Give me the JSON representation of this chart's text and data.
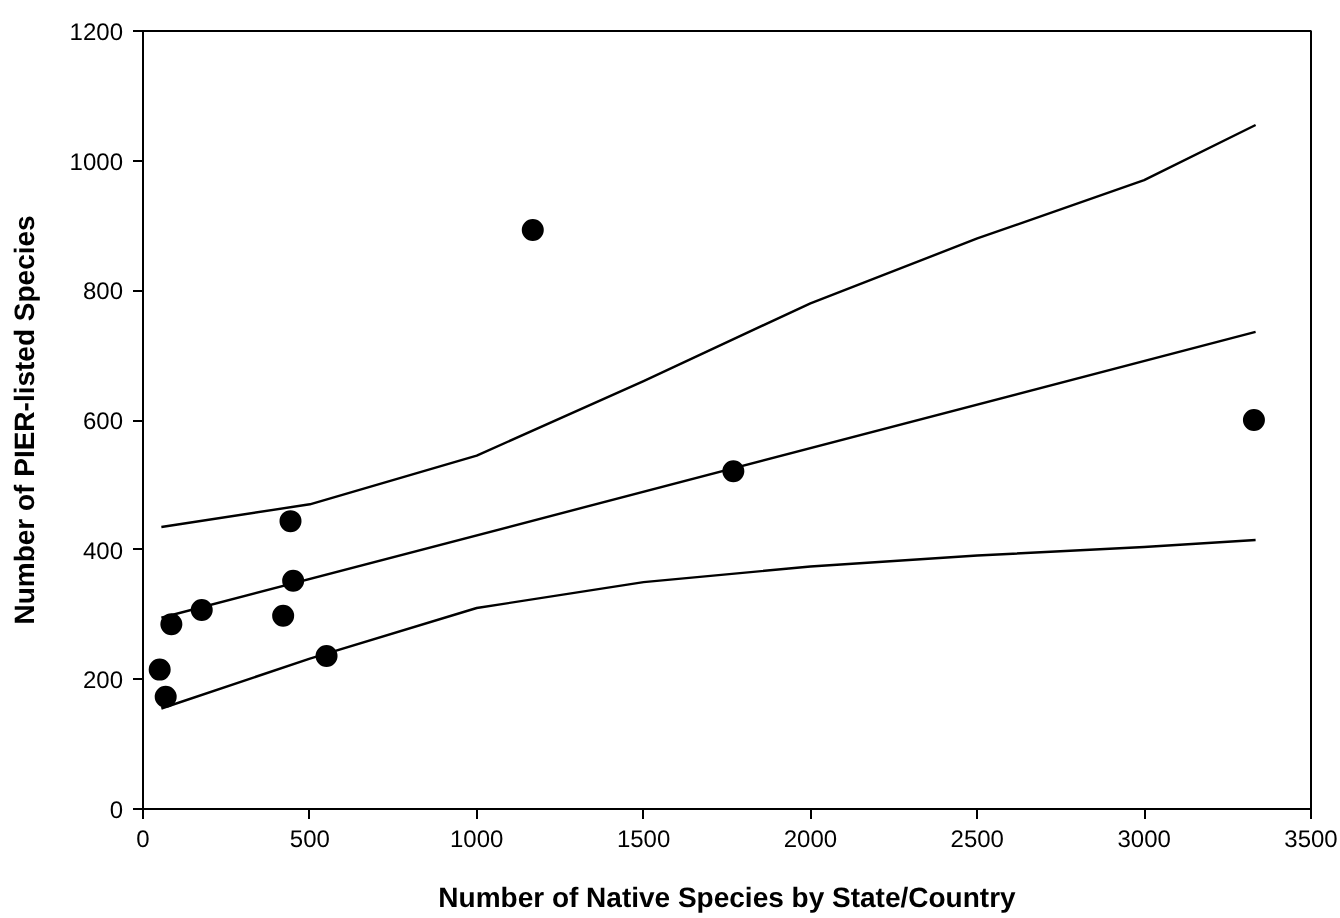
{
  "chart_data": {
    "type": "scatter",
    "xlabel": "Number of Native Species by State/Country",
    "ylabel": "Number of PIER-listed Species",
    "xlim": [
      0,
      3500
    ],
    "ylim": [
      0,
      1200
    ],
    "xticks": [
      0,
      500,
      1000,
      1500,
      2000,
      2500,
      3000,
      3500
    ],
    "yticks": [
      0,
      200,
      400,
      600,
      800,
      1000,
      1200
    ],
    "series": [
      {
        "color": "#000000",
        "marker": "circle",
        "x": [
          50,
          68,
          85,
          176,
          420,
          442,
          450,
          550,
          1168,
          1769,
          3329
        ],
        "values": [
          215,
          173,
          285,
          307,
          298,
          444,
          352,
          236,
          893,
          521,
          600
        ]
      },
      {
        "type": "line",
        "color": "#000000",
        "marker": "none",
        "line_style": "solid",
        "x": [
          55,
          3334
        ],
        "values": [
          295,
          736
        ]
      },
      {
        "type": "line",
        "color": "#000000",
        "marker": "none",
        "line_style": "solid",
        "x": [
          55,
          500,
          1000,
          1500,
          2000,
          2500,
          3000,
          3334
        ],
        "values": [
          435,
          470,
          545,
          660,
          780,
          880,
          970,
          1055
        ]
      },
      {
        "type": "line",
        "color": "#000000",
        "marker": "none",
        "line_style": "solid",
        "x": [
          55,
          500,
          1000,
          1500,
          2000,
          2500,
          3000,
          3334
        ],
        "values": [
          155,
          232,
          310,
          350,
          374,
          391,
          404,
          415
        ]
      }
    ]
  }
}
